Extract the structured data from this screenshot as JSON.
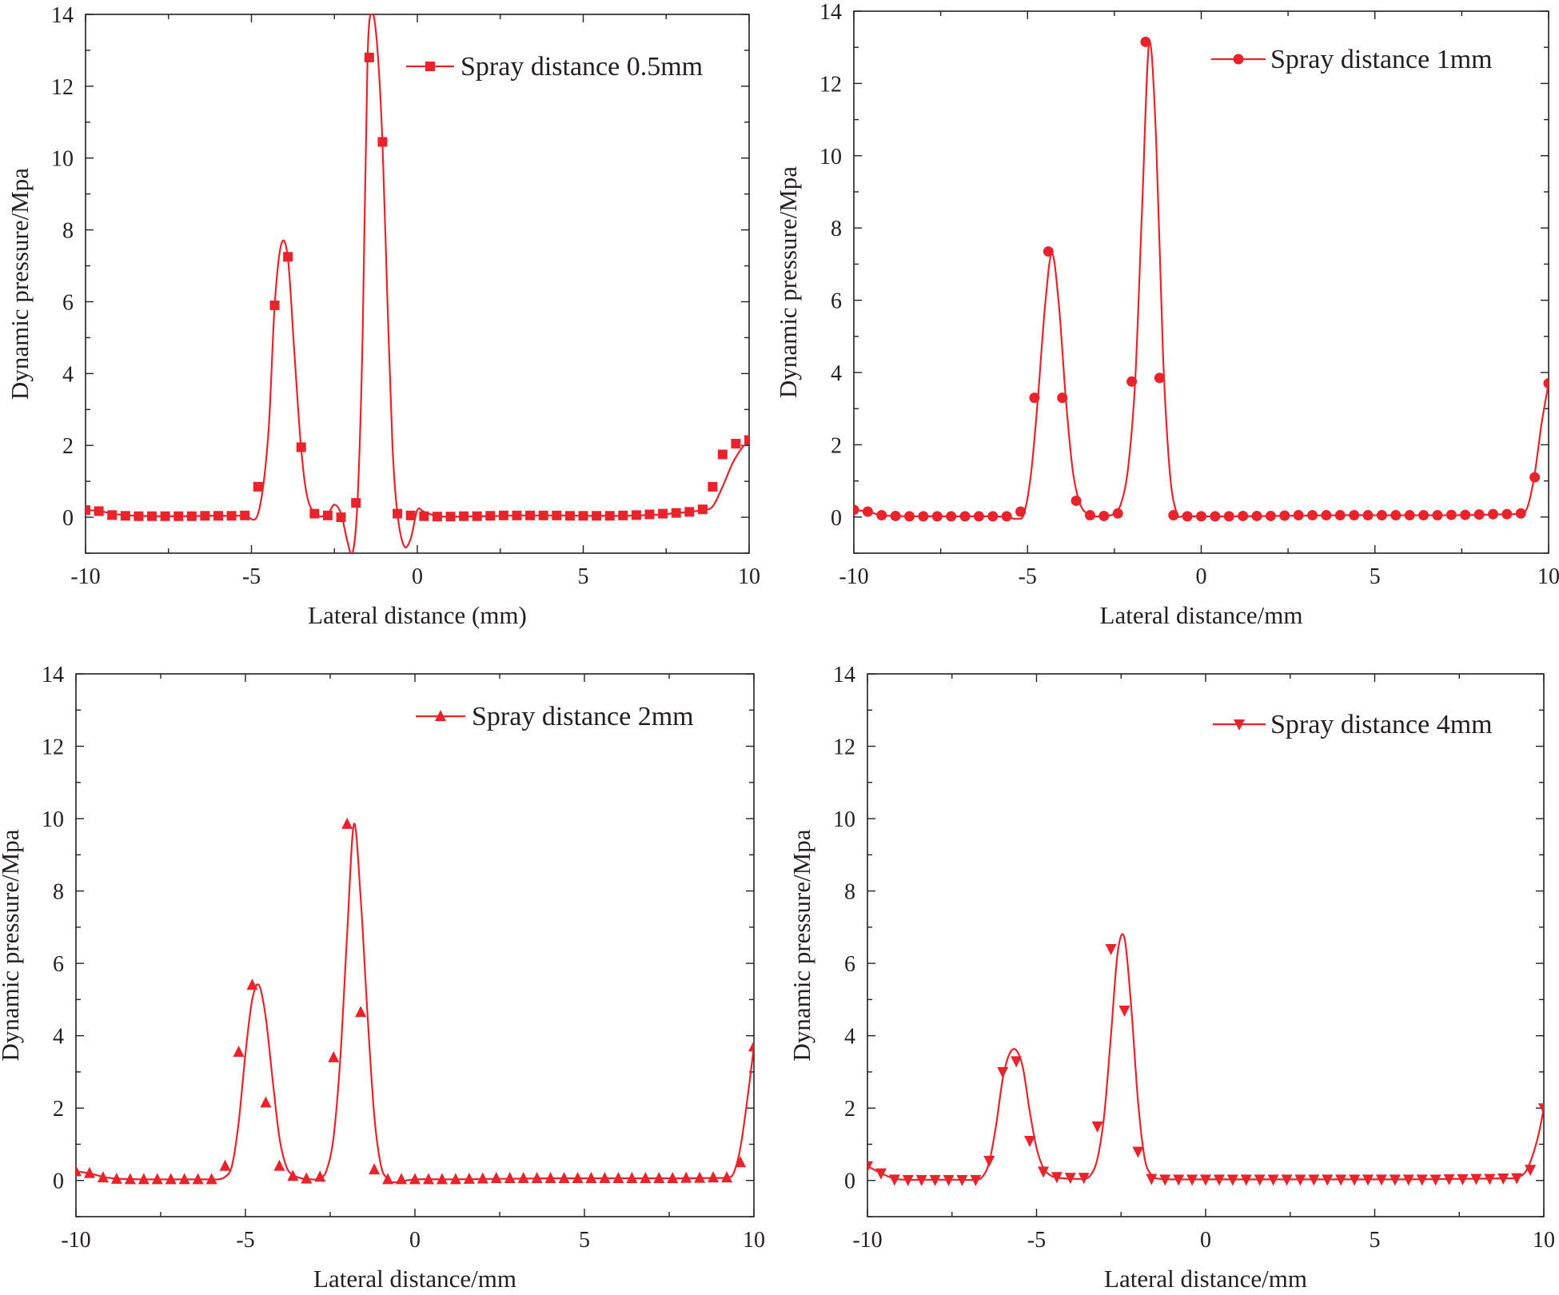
{
  "figure": {
    "series_color": "#e8232b",
    "axis_color": "#231f20"
  },
  "chart_data": [
    {
      "type": "line",
      "marker": "square",
      "xlabel": "Lateral distance (mm)",
      "ylabel": "Dynamic pressure/Mpa",
      "xlim": [
        -10,
        10
      ],
      "ylim": [
        -1,
        14
      ],
      "xticks": [
        -10,
        -5,
        0,
        5,
        10
      ],
      "yticks": [
        0,
        2,
        4,
        6,
        8,
        10,
        12,
        14
      ],
      "legend_position": "top-right",
      "series": [
        {
          "name": "Spray distance 0.5mm",
          "x": [
            -10,
            -9.6,
            -9.2,
            -8.8,
            -8.4,
            -8.0,
            -7.6,
            -7.2,
            -6.8,
            -6.4,
            -6.0,
            -5.6,
            -5.2,
            -4.8,
            -4.5,
            -4.3,
            -4.1,
            -3.9,
            -3.7,
            -3.5,
            -3.3,
            -3.0,
            -2.7,
            -2.5,
            -2.3,
            -2.1,
            -1.95,
            -1.8,
            -1.65,
            -1.5,
            -1.35,
            -1.2,
            -1.05,
            -0.9,
            -0.75,
            -0.6,
            -0.4,
            -0.2,
            0.0,
            0.2,
            0.6,
            1.0,
            1.4,
            1.8,
            2.2,
            2.6,
            3.0,
            3.4,
            3.8,
            4.2,
            4.6,
            5.0,
            5.4,
            5.8,
            6.2,
            6.6,
            7.0,
            7.4,
            7.8,
            8.2,
            8.6,
            8.9,
            9.2,
            9.5,
            9.8,
            10.0
          ],
          "y": [
            0.2,
            0.18,
            0.1,
            0.06,
            0.04,
            0.03,
            0.03,
            0.03,
            0.03,
            0.04,
            0.04,
            0.04,
            0.05,
            0.1,
            2.2,
            5.9,
            7.6,
            7.2,
            4.5,
            1.9,
            0.5,
            0.05,
            0.1,
            0.35,
            0.1,
            -0.7,
            -1.0,
            0.5,
            5.0,
            12.8,
            14.0,
            13.0,
            10.4,
            6.0,
            2.0,
            0.1,
            -0.8,
            -0.6,
            0.2,
            0.15,
            0.03,
            0.02,
            0.02,
            0.03,
            0.03,
            0.04,
            0.05,
            0.05,
            0.05,
            0.05,
            0.05,
            0.04,
            0.04,
            0.04,
            0.04,
            0.05,
            0.06,
            0.08,
            0.12,
            0.15,
            0.2,
            0.3,
            0.85,
            1.5,
            1.95,
            2.1
          ],
          "markers_x": [
            -10,
            -9.6,
            -9.2,
            -8.8,
            -8.4,
            -8.0,
            -7.6,
            -7.2,
            -6.8,
            -6.4,
            -6.0,
            -5.6,
            -5.2,
            -4.8,
            -4.3,
            -3.9,
            -3.5,
            -3.1,
            -2.7,
            -2.3,
            -1.85,
            -1.45,
            -1.05,
            -0.6,
            -0.2,
            0.2,
            0.6,
            1.0,
            1.4,
            1.8,
            2.2,
            2.6,
            3.0,
            3.4,
            3.8,
            4.2,
            4.6,
            5.0,
            5.4,
            5.8,
            6.2,
            6.6,
            7.0,
            7.4,
            7.8,
            8.2,
            8.6,
            8.9,
            9.2,
            9.6,
            10.0
          ],
          "markers_y": [
            0.2,
            0.17,
            0.06,
            0.04,
            0.03,
            0.03,
            0.03,
            0.03,
            0.03,
            0.04,
            0.04,
            0.04,
            0.05,
            0.85,
            5.9,
            7.25,
            1.95,
            0.1,
            0.05,
            0.0,
            0.4,
            12.8,
            10.45,
            0.1,
            0.05,
            0.03,
            0.02,
            0.02,
            0.03,
            0.03,
            0.04,
            0.05,
            0.05,
            0.05,
            0.05,
            0.05,
            0.04,
            0.04,
            0.04,
            0.04,
            0.05,
            0.06,
            0.08,
            0.1,
            0.12,
            0.15,
            0.22,
            0.85,
            1.75,
            2.05,
            2.15
          ]
        }
      ]
    },
    {
      "type": "line",
      "marker": "circle",
      "xlabel": "Lateral distance/mm",
      "ylabel": "Dynamic pressure/Mpa",
      "xlim": [
        -10,
        10
      ],
      "ylim": [
        -1,
        14
      ],
      "xticks": [
        -10,
        -5,
        0,
        5,
        10
      ],
      "yticks": [
        0,
        2,
        4,
        6,
        8,
        10,
        12,
        14
      ],
      "legend_position": "top-right",
      "series": [
        {
          "name": "Spray distance 1mm",
          "x": [
            -10,
            -9.6,
            -9.2,
            -8.8,
            -8.4,
            -8.0,
            -7.6,
            -7.2,
            -6.8,
            -6.4,
            -6.0,
            -5.6,
            -5.3,
            -5.1,
            -4.9,
            -4.7,
            -4.5,
            -4.3,
            -4.1,
            -3.9,
            -3.7,
            -3.5,
            -3.3,
            -3.1,
            -2.9,
            -2.7,
            -2.5,
            -2.3,
            -2.1,
            -1.9,
            -1.7,
            -1.5,
            -1.3,
            -1.1,
            -0.9,
            -0.7,
            -0.5,
            0.0,
            1.0,
            2.0,
            3.0,
            4.0,
            5.0,
            6.0,
            7.0,
            8.0,
            8.8,
            9.2,
            9.4,
            9.6,
            9.8,
            10.0
          ],
          "y": [
            0.2,
            0.15,
            0.05,
            0.03,
            0.02,
            0.02,
            0.02,
            0.02,
            0.02,
            0.02,
            0.02,
            0.0,
            -0.05,
            0.1,
            1.2,
            3.3,
            5.8,
            7.3,
            5.9,
            3.3,
            1.3,
            0.4,
            0.1,
            0.02,
            0.02,
            0.03,
            0.1,
            0.4,
            1.4,
            3.8,
            8.6,
            13.1,
            10.5,
            4.5,
            1.2,
            0.1,
            0.03,
            0.02,
            0.02,
            0.03,
            0.04,
            0.05,
            0.05,
            0.05,
            0.05,
            0.06,
            0.08,
            0.1,
            0.3,
            1.2,
            2.6,
            3.7
          ],
          "markers_x": [
            -10,
            -9.6,
            -9.2,
            -8.8,
            -8.4,
            -8.0,
            -7.6,
            -7.2,
            -6.8,
            -6.4,
            -6.0,
            -5.6,
            -5.2,
            -4.8,
            -4.4,
            -4.0,
            -3.6,
            -3.2,
            -2.8,
            -2.4,
            -2.0,
            -1.6,
            -1.2,
            -0.8,
            -0.4,
            0.0,
            0.4,
            0.8,
            1.2,
            1.6,
            2.0,
            2.4,
            2.8,
            3.2,
            3.6,
            4.0,
            4.4,
            4.8,
            5.2,
            5.6,
            6.0,
            6.4,
            6.8,
            7.2,
            7.6,
            8.0,
            8.4,
            8.8,
            9.2,
            9.6,
            10.0
          ],
          "markers_y": [
            0.2,
            0.15,
            0.05,
            0.03,
            0.02,
            0.02,
            0.02,
            0.02,
            0.02,
            0.02,
            0.02,
            0.02,
            0.15,
            3.3,
            7.35,
            3.3,
            0.45,
            0.05,
            0.03,
            0.1,
            3.75,
            13.15,
            3.85,
            0.05,
            0.02,
            0.02,
            0.02,
            0.02,
            0.03,
            0.03,
            0.03,
            0.04,
            0.05,
            0.05,
            0.05,
            0.05,
            0.05,
            0.05,
            0.05,
            0.05,
            0.05,
            0.05,
            0.05,
            0.06,
            0.06,
            0.07,
            0.08,
            0.08,
            0.1,
            1.1,
            3.7
          ]
        }
      ]
    },
    {
      "type": "line",
      "marker": "triangle-up",
      "xlabel": "Lateral distance/mm",
      "ylabel": "Dynamic pressure/Mpa",
      "xlim": [
        -10,
        10
      ],
      "ylim": [
        -1,
        14
      ],
      "xticks": [
        -10,
        -5,
        0,
        5,
        10
      ],
      "yticks": [
        0,
        2,
        4,
        6,
        8,
        10,
        12,
        14
      ],
      "legend_position": "top-right",
      "series": [
        {
          "name": "Spray distance 2mm",
          "x": [
            -10,
            -9.6,
            -9.2,
            -8.8,
            -8.4,
            -8.0,
            -7.6,
            -7.2,
            -6.8,
            -6.4,
            -6.0,
            -5.8,
            -5.6,
            -5.4,
            -5.2,
            -5.0,
            -4.8,
            -4.6,
            -4.4,
            -4.2,
            -4.0,
            -3.8,
            -3.6,
            -3.3,
            -3.0,
            -2.8,
            -2.6,
            -2.4,
            -2.2,
            -2.0,
            -1.8,
            -1.6,
            -1.4,
            -1.2,
            -1.0,
            -0.8,
            -0.6,
            0.0,
            1.0,
            2.0,
            3.0,
            4.0,
            5.0,
            6.0,
            7.0,
            8.0,
            8.8,
            9.2,
            9.4,
            9.6,
            9.8,
            10.0
          ],
          "y": [
            0.25,
            0.2,
            0.1,
            0.05,
            0.04,
            0.03,
            0.03,
            0.03,
            0.03,
            0.03,
            0.03,
            0.03,
            0.1,
            0.4,
            1.6,
            3.5,
            5.0,
            5.4,
            4.5,
            2.8,
            1.2,
            0.4,
            0.15,
            0.05,
            0.03,
            0.05,
            0.3,
            1.2,
            3.4,
            6.8,
            9.85,
            7.8,
            4.6,
            1.8,
            0.4,
            0.05,
            -0.05,
            0.03,
            0.03,
            0.04,
            0.05,
            0.06,
            0.06,
            0.06,
            0.06,
            0.06,
            0.07,
            0.08,
            0.2,
            0.9,
            2.2,
            3.7
          ],
          "markers_x": [
            -10,
            -9.6,
            -9.2,
            -8.8,
            -8.4,
            -8.0,
            -7.6,
            -7.2,
            -6.8,
            -6.4,
            -6.0,
            -5.6,
            -5.2,
            -4.8,
            -4.4,
            -4.0,
            -3.6,
            -3.2,
            -2.8,
            -2.4,
            -2.0,
            -1.6,
            -1.2,
            -0.8,
            -0.4,
            0.0,
            0.4,
            0.8,
            1.2,
            1.6,
            2.0,
            2.4,
            2.8,
            3.2,
            3.6,
            4.0,
            4.4,
            4.8,
            5.2,
            5.6,
            6.0,
            6.4,
            6.8,
            7.2,
            7.6,
            8.0,
            8.4,
            8.8,
            9.2,
            9.6,
            10.0
          ],
          "markers_y": [
            0.25,
            0.2,
            0.08,
            0.04,
            0.03,
            0.03,
            0.03,
            0.03,
            0.03,
            0.03,
            0.03,
            0.4,
            3.55,
            5.4,
            2.15,
            0.4,
            0.12,
            0.05,
            0.1,
            3.4,
            9.85,
            4.65,
            0.3,
            0.03,
            0.03,
            0.03,
            0.03,
            0.03,
            0.03,
            0.04,
            0.05,
            0.06,
            0.06,
            0.06,
            0.06,
            0.06,
            0.06,
            0.06,
            0.06,
            0.06,
            0.06,
            0.06,
            0.06,
            0.06,
            0.06,
            0.07,
            0.07,
            0.08,
            0.08,
            0.5,
            3.7
          ]
        }
      ]
    },
    {
      "type": "line",
      "marker": "triangle-down",
      "xlabel": "Lateral distance/mm",
      "ylabel": "Dynamic pressure/Mpa",
      "xlim": [
        -10,
        10
      ],
      "ylim": [
        -1,
        14
      ],
      "xticks": [
        -10,
        -5,
        0,
        5,
        10
      ],
      "yticks": [
        0,
        2,
        4,
        6,
        8,
        10,
        12,
        14
      ],
      "legend_position": "top-right",
      "series": [
        {
          "name": "Spray distance 4mm",
          "x": [
            -10,
            -9.6,
            -9.2,
            -8.8,
            -8.4,
            -8.0,
            -7.6,
            -7.2,
            -6.8,
            -6.6,
            -6.4,
            -6.2,
            -6.0,
            -5.8,
            -5.6,
            -5.4,
            -5.2,
            -5.0,
            -4.8,
            -4.6,
            -4.4,
            -4.0,
            -3.6,
            -3.4,
            -3.2,
            -3.0,
            -2.8,
            -2.6,
            -2.4,
            -2.2,
            -2.0,
            -1.8,
            -1.6,
            -1.4,
            -1.0,
            0.0,
            1.0,
            2.0,
            3.0,
            4.0,
            5.0,
            6.0,
            7.0,
            8.0,
            8.8,
            9.2,
            9.5,
            9.8,
            10.0
          ],
          "y": [
            0.4,
            0.2,
            0.05,
            0.02,
            0.02,
            0.02,
            0.02,
            0.02,
            0.02,
            0.1,
            0.5,
            1.5,
            2.8,
            3.5,
            3.6,
            3.1,
            1.9,
            0.9,
            0.35,
            0.15,
            0.08,
            0.05,
            0.05,
            0.15,
            0.6,
            1.8,
            4.0,
            6.3,
            6.7,
            4.8,
            2.2,
            0.6,
            0.15,
            0.05,
            0.03,
            0.03,
            0.03,
            0.03,
            0.03,
            0.03,
            0.03,
            0.03,
            0.04,
            0.05,
            0.06,
            0.08,
            0.3,
            1.1,
            2.0
          ],
          "markers_x": [
            -10,
            -9.6,
            -9.2,
            -8.8,
            -8.4,
            -8.0,
            -7.6,
            -7.2,
            -6.8,
            -6.4,
            -6.0,
            -5.6,
            -5.2,
            -4.8,
            -4.4,
            -4.0,
            -3.6,
            -3.2,
            -2.8,
            -2.4,
            -2.0,
            -1.6,
            -1.2,
            -0.8,
            -0.4,
            0.0,
            0.4,
            0.8,
            1.2,
            1.6,
            2.0,
            2.4,
            2.8,
            3.2,
            3.6,
            4.0,
            4.4,
            4.8,
            5.2,
            5.6,
            6.0,
            6.4,
            6.8,
            7.2,
            7.6,
            8.0,
            8.4,
            8.8,
            9.2,
            9.6,
            10.0
          ],
          "markers_y": [
            0.4,
            0.2,
            0.03,
            0.02,
            0.02,
            0.02,
            0.02,
            0.02,
            0.02,
            0.55,
            3.0,
            3.3,
            1.1,
            0.25,
            0.1,
            0.08,
            0.08,
            1.5,
            6.4,
            4.7,
            0.8,
            0.05,
            0.03,
            0.03,
            0.03,
            0.03,
            0.03,
            0.03,
            0.03,
            0.03,
            0.03,
            0.03,
            0.03,
            0.03,
            0.03,
            0.03,
            0.03,
            0.03,
            0.03,
            0.03,
            0.03,
            0.03,
            0.03,
            0.04,
            0.04,
            0.05,
            0.05,
            0.06,
            0.07,
            0.3,
            2.0
          ]
        }
      ]
    }
  ]
}
